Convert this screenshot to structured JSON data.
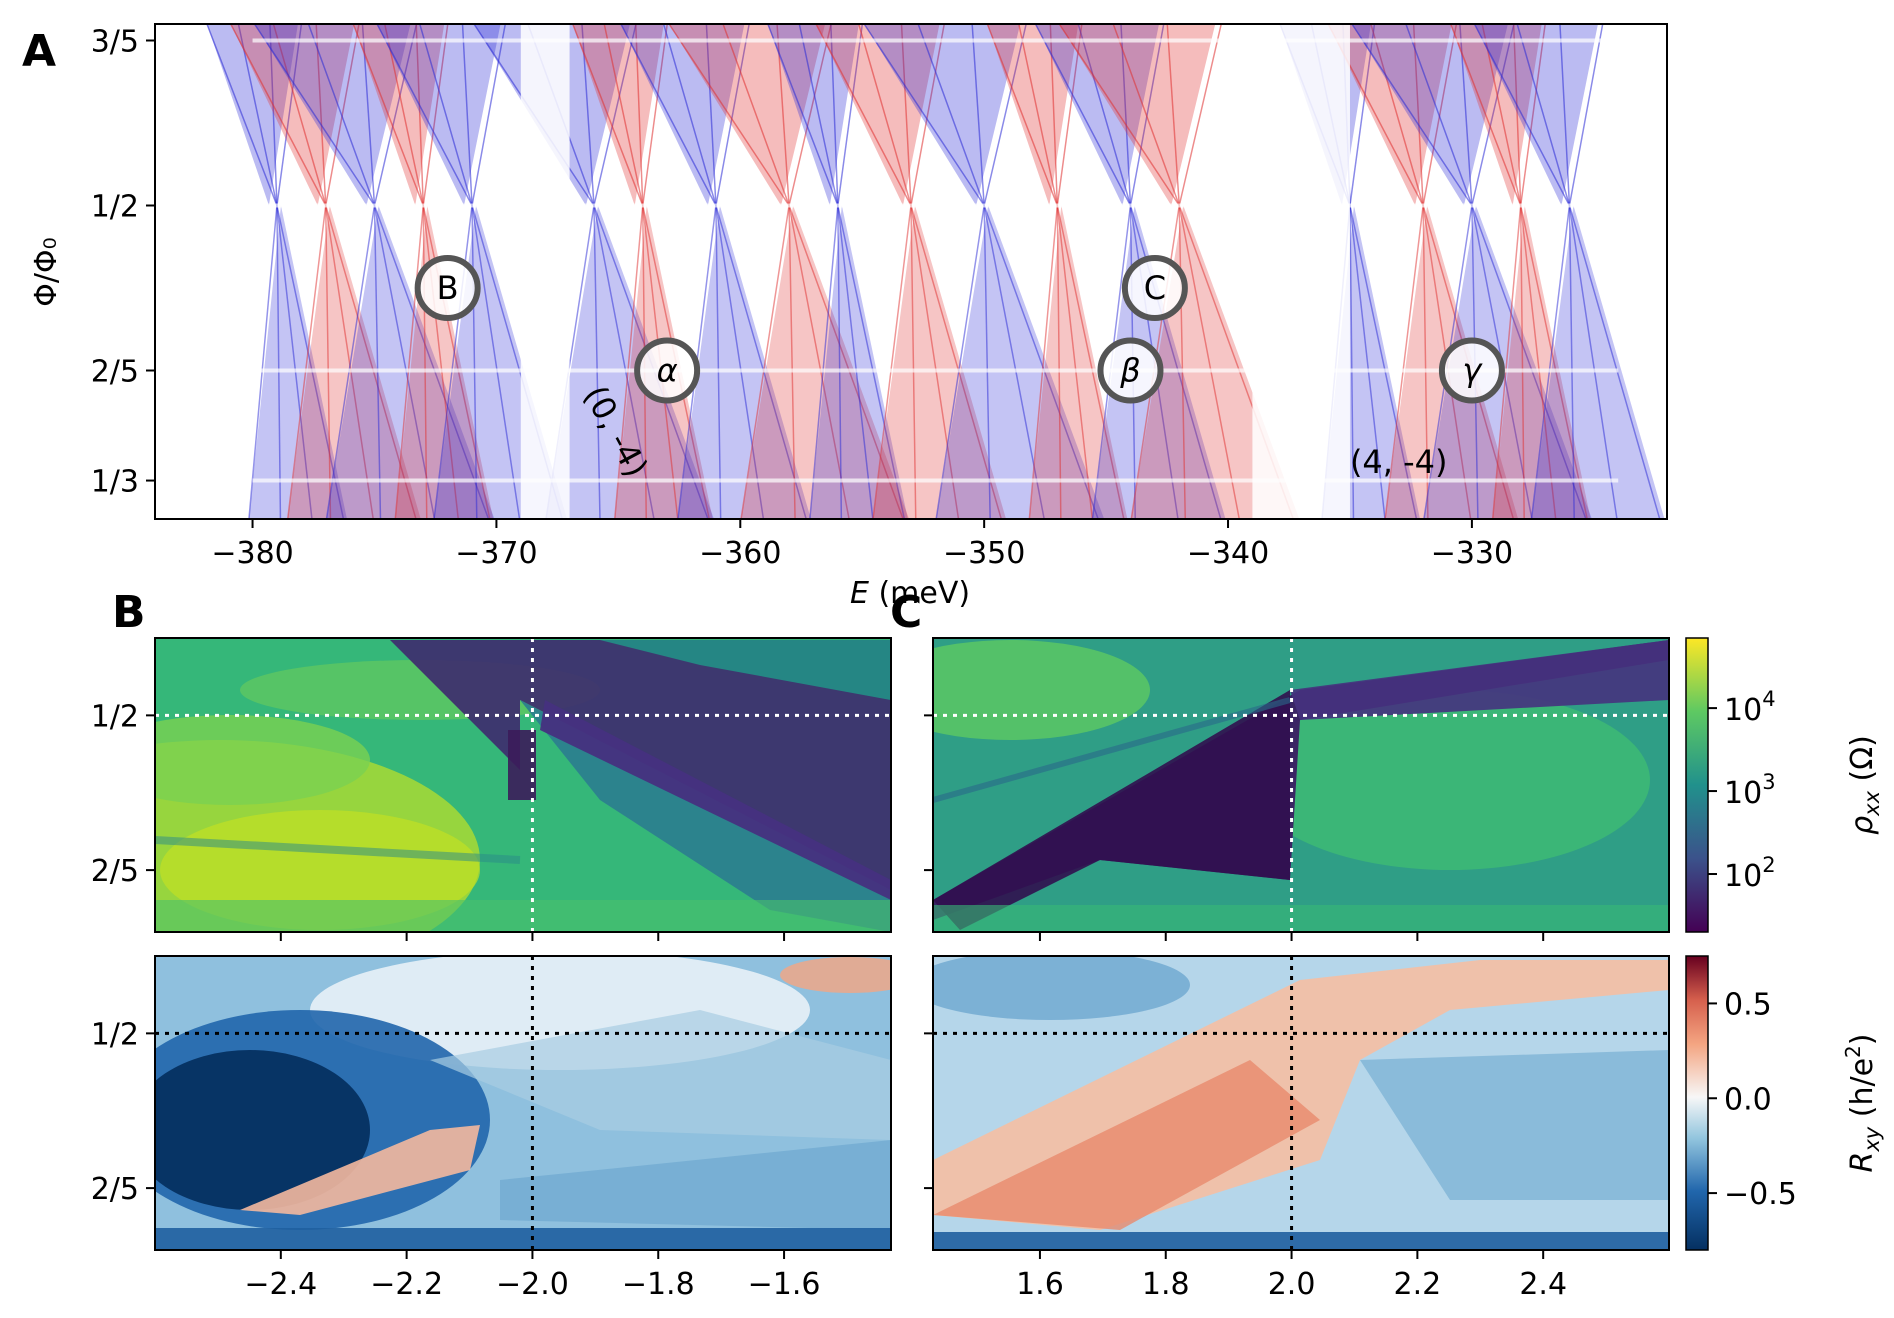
{
  "panel_labels": [
    "A",
    "B",
    "C"
  ],
  "chart_data": [
    {
      "id": "A",
      "type": "scatter",
      "title": "",
      "xlabel_italic": "E",
      "xlabel_rest": " (meV)",
      "ylabel": "Φ/Φ₀",
      "xlim": [
        -384,
        -322
      ],
      "ylim": [
        0.31,
        0.61
      ],
      "xticks": [
        -380,
        -370,
        -360,
        -350,
        -340,
        -330
      ],
      "xtick_labels": [
        "−380",
        "−370",
        "−360",
        "−350",
        "−340",
        "−330"
      ],
      "yticks": [
        0.3333,
        0.4,
        0.5,
        0.6
      ],
      "ytick_labels": [
        "1/3",
        "2/5",
        "1/2",
        "3/5"
      ],
      "series": [
        {
          "name": "blue-bands",
          "color": "#2b2bd6"
        },
        {
          "name": "red-bands",
          "color": "#e03030"
        }
      ],
      "annotations": [
        {
          "label": "B",
          "x": -372,
          "y": 0.45
        },
        {
          "label": "α",
          "x": -363,
          "y": 0.4
        },
        {
          "label": "C",
          "x": -343,
          "y": 0.45
        },
        {
          "label": "β",
          "x": -344,
          "y": 0.4
        },
        {
          "label": "γ",
          "x": -330,
          "y": 0.4
        }
      ],
      "text_annotations": [
        {
          "text": "(0, -4)",
          "x": -365.5,
          "y": 0.36,
          "rotation": 62
        },
        {
          "text": "(4, -4)",
          "x": -333,
          "y": 0.338,
          "rotation": 0
        }
      ]
    },
    {
      "id": "B-top",
      "type": "heatmap",
      "xlim": [
        -2.6,
        -1.43
      ],
      "ylim": [
        0.36,
        0.55
      ],
      "xticks": [
        -2.4,
        -2.2,
        -2.0,
        -1.8,
        -1.6
      ],
      "yticks": [
        0.4,
        0.5
      ],
      "ytick_labels": [
        "2/5",
        "1/2"
      ],
      "crosshair": {
        "x": -2.0,
        "y": 0.5,
        "color": "#ffffff"
      },
      "colormap": "viridis-log"
    },
    {
      "id": "C-top",
      "type": "heatmap",
      "xlim": [
        1.43,
        2.6
      ],
      "ylim": [
        0.36,
        0.55
      ],
      "xticks": [
        1.6,
        1.8,
        2.0,
        2.2,
        2.4
      ],
      "yticks": [
        0.4,
        0.5
      ],
      "crosshair": {
        "x": 2.0,
        "y": 0.5,
        "color": "#ffffff"
      },
      "colormap": "viridis-log"
    },
    {
      "id": "B-bottom",
      "type": "heatmap",
      "xlim": [
        -2.6,
        -1.43
      ],
      "ylim": [
        0.36,
        0.55
      ],
      "xticks": [
        -2.4,
        -2.2,
        -2.0,
        -1.8,
        -1.6
      ],
      "xtick_labels": [
        "−2.4",
        "−2.2",
        "−2.0",
        "−1.8",
        "−1.6"
      ],
      "yticks": [
        0.4,
        0.5
      ],
      "ytick_labels": [
        "2/5",
        "1/2"
      ],
      "crosshair": {
        "x": -2.0,
        "y": 0.5,
        "color": "#000000"
      },
      "colormap": "RdBu_r"
    },
    {
      "id": "C-bottom",
      "type": "heatmap",
      "xlim": [
        1.43,
        2.6
      ],
      "ylim": [
        0.36,
        0.55
      ],
      "xticks": [
        1.6,
        1.8,
        2.0,
        2.2,
        2.4
      ],
      "xtick_labels": [
        "1.6",
        "1.8",
        "2.0",
        "2.2",
        "2.4"
      ],
      "yticks": [
        0.4,
        0.5
      ],
      "crosshair": {
        "x": 2.0,
        "y": 0.5,
        "color": "#000000"
      },
      "colormap": "RdBu_r"
    }
  ],
  "colorbars": [
    {
      "id": "rho",
      "label_main": "ρ",
      "label_sub": "xx",
      "label_unit": " (Ω)",
      "scale": "log",
      "range": [
        20,
        70000
      ],
      "ticks": [
        100,
        1000,
        10000
      ],
      "tick_base": "10",
      "tick_exps": [
        "2",
        "3",
        "4"
      ]
    },
    {
      "id": "rxy",
      "label_main": "R",
      "label_sub": "xy",
      "label_unit_open": " (h/e",
      "label_unit_sup": "2",
      "label_unit_close": ")",
      "scale": "linear",
      "range": [
        -0.8,
        0.75
      ],
      "ticks": [
        0.5,
        0.0,
        -0.5
      ],
      "tick_labels": [
        "0.5",
        "0.0",
        "−0.5"
      ]
    }
  ]
}
